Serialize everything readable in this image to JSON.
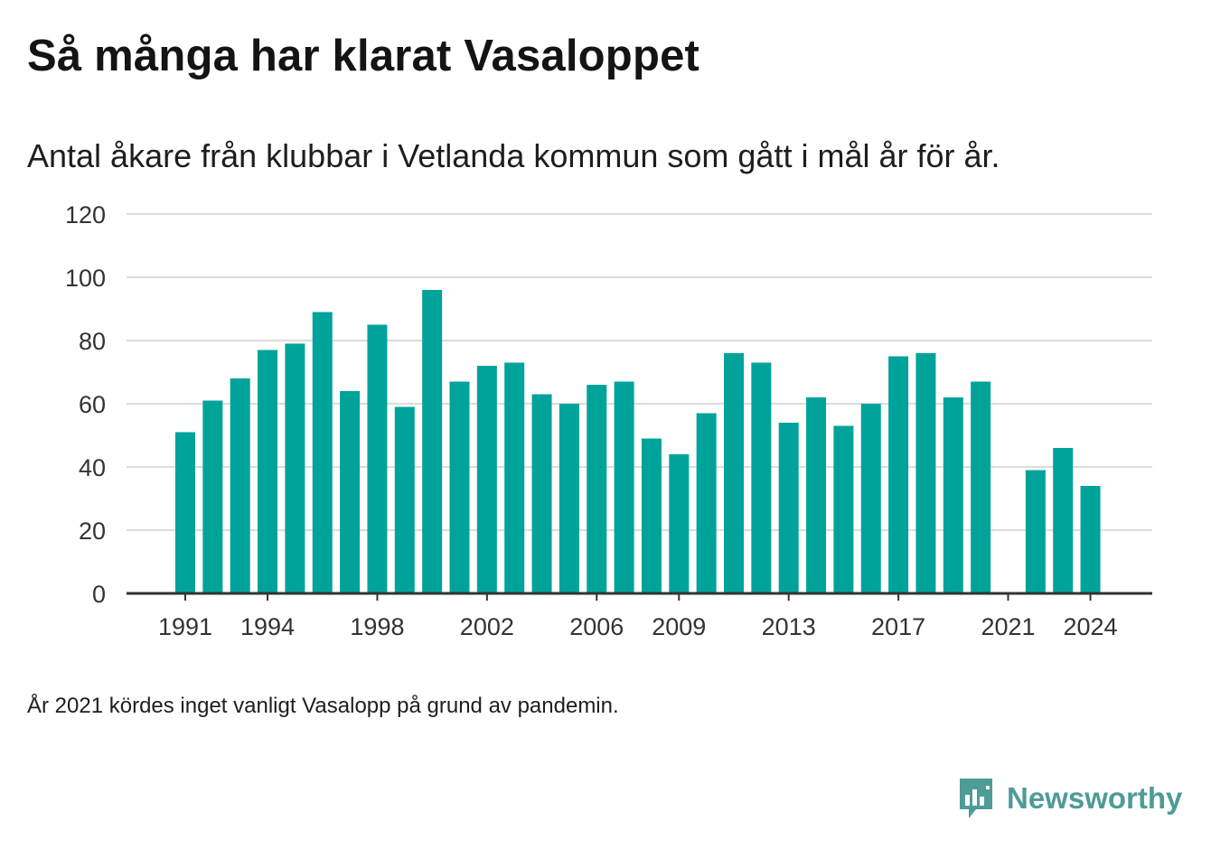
{
  "title": "Så många har klarat Vasaloppet",
  "subtitle": "Antal åkare från klubbar i Vetlanda kommun som gått i mål år för år.",
  "note": "År 2021 kördes inget vanligt Vasalopp på grund av pandemin.",
  "brand": {
    "name": "Newsworthy",
    "color": "#4e9b98",
    "icon": "bar-chart-speech-bubble-icon"
  },
  "colors": {
    "bar": "#00a39a",
    "grid": "#dcdcdc",
    "axis": "#333333"
  },
  "chart_data": {
    "type": "bar",
    "title": "",
    "xlabel": "",
    "ylabel": "",
    "categories": [
      1991,
      1992,
      1993,
      1994,
      1995,
      1996,
      1997,
      1998,
      1999,
      2000,
      2001,
      2002,
      2003,
      2004,
      2005,
      2006,
      2007,
      2008,
      2009,
      2010,
      2011,
      2012,
      2013,
      2014,
      2015,
      2016,
      2017,
      2018,
      2019,
      2020,
      2021,
      2022,
      2023,
      2024
    ],
    "values": [
      51,
      61,
      68,
      77,
      79,
      89,
      64,
      85,
      59,
      96,
      67,
      72,
      73,
      63,
      60,
      66,
      67,
      49,
      44,
      57,
      76,
      73,
      54,
      62,
      53,
      60,
      75,
      76,
      62,
      67,
      null,
      39,
      46,
      34
    ],
    "x_tick_labels": [
      1991,
      1994,
      1998,
      2002,
      2006,
      2009,
      2013,
      2017,
      2021,
      2024
    ],
    "ylim": [
      0,
      120
    ],
    "y_ticks": [
      0,
      20,
      40,
      60,
      80,
      100,
      120
    ],
    "grid": true,
    "legend": "none"
  }
}
